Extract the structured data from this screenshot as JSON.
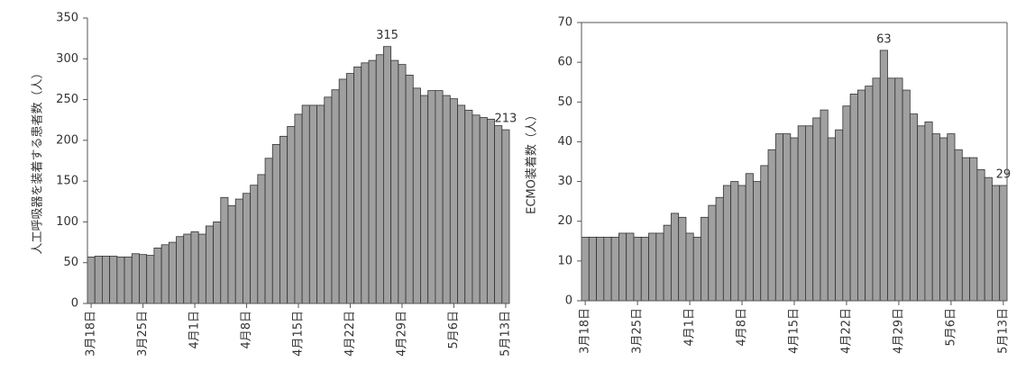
{
  "chart_data": [
    {
      "type": "bar",
      "y_label": "人工呼吸器を装着する患者数（人）",
      "categories": [
        "3月18日",
        null,
        null,
        null,
        null,
        null,
        null,
        "3月25日",
        null,
        null,
        null,
        null,
        null,
        null,
        "4月1日",
        null,
        null,
        null,
        null,
        null,
        null,
        "4月8日",
        null,
        null,
        null,
        null,
        null,
        null,
        "4月15日",
        null,
        null,
        null,
        null,
        null,
        null,
        "4月22日",
        null,
        null,
        null,
        null,
        null,
        null,
        "4月29日",
        null,
        null,
        null,
        null,
        null,
        null,
        "5月6日",
        null,
        null,
        null,
        null,
        null,
        null,
        "5月13日"
      ],
      "values": [
        57,
        58,
        58,
        58,
        57,
        57,
        61,
        60,
        59,
        68,
        72,
        75,
        82,
        85,
        88,
        85,
        95,
        100,
        130,
        120,
        128,
        135,
        145,
        158,
        178,
        195,
        205,
        217,
        232,
        243,
        243,
        243,
        253,
        262,
        275,
        282,
        290,
        295,
        298,
        305,
        315,
        298,
        293,
        280,
        264,
        255,
        261,
        261,
        255,
        251,
        243,
        237,
        231,
        228,
        226,
        218,
        213
      ],
      "value_labels": [
        null,
        null,
        null,
        null,
        null,
        null,
        null,
        null,
        null,
        null,
        null,
        null,
        null,
        null,
        null,
        null,
        null,
        null,
        null,
        null,
        null,
        null,
        null,
        null,
        null,
        null,
        null,
        null,
        null,
        null,
        null,
        null,
        null,
        null,
        null,
        null,
        null,
        null,
        null,
        null,
        "315",
        null,
        null,
        null,
        null,
        null,
        null,
        null,
        null,
        null,
        null,
        null,
        null,
        null,
        null,
        null,
        "213"
      ],
      "color": "#a0a0a0",
      "ylim": [
        0,
        350
      ],
      "yticks": [
        0,
        50,
        100,
        150,
        200,
        250,
        300,
        350
      ],
      "frame": false
    },
    {
      "type": "bar",
      "y_label": "ECMO装着数（人）",
      "categories": [
        "3月18日",
        null,
        null,
        null,
        null,
        null,
        null,
        "3月25日",
        null,
        null,
        null,
        null,
        null,
        null,
        "4月1日",
        null,
        null,
        null,
        null,
        null,
        null,
        "4月8日",
        null,
        null,
        null,
        null,
        null,
        null,
        "4月15日",
        null,
        null,
        null,
        null,
        null,
        null,
        "4月22日",
        null,
        null,
        null,
        null,
        null,
        null,
        "4月29日",
        null,
        null,
        null,
        null,
        null,
        null,
        "5月6日",
        null,
        null,
        null,
        null,
        null,
        null,
        "5月13日"
      ],
      "values": [
        16,
        16,
        16,
        16,
        16,
        17,
        17,
        16,
        16,
        17,
        17,
        19,
        22,
        21,
        17,
        16,
        21,
        24,
        26,
        29,
        30,
        29,
        32,
        30,
        34,
        38,
        42,
        42,
        41,
        44,
        44,
        46,
        48,
        41,
        43,
        49,
        52,
        53,
        54,
        56,
        63,
        56,
        56,
        53,
        47,
        44,
        45,
        42,
        41,
        42,
        38,
        36,
        36,
        33,
        31,
        29,
        29
      ],
      "value_labels": [
        null,
        null,
        null,
        null,
        null,
        null,
        null,
        null,
        null,
        null,
        null,
        null,
        null,
        null,
        null,
        null,
        null,
        null,
        null,
        null,
        null,
        null,
        null,
        null,
        null,
        null,
        null,
        null,
        null,
        null,
        null,
        null,
        null,
        null,
        null,
        null,
        null,
        null,
        null,
        null,
        "63",
        null,
        null,
        null,
        null,
        null,
        null,
        null,
        null,
        null,
        null,
        null,
        null,
        null,
        null,
        null,
        "29"
      ],
      "color": "#a0a0a0",
      "ylim": [
        0,
        70
      ],
      "yticks": [
        0,
        10,
        20,
        30,
        40,
        50,
        60,
        70
      ],
      "frame": true
    }
  ]
}
